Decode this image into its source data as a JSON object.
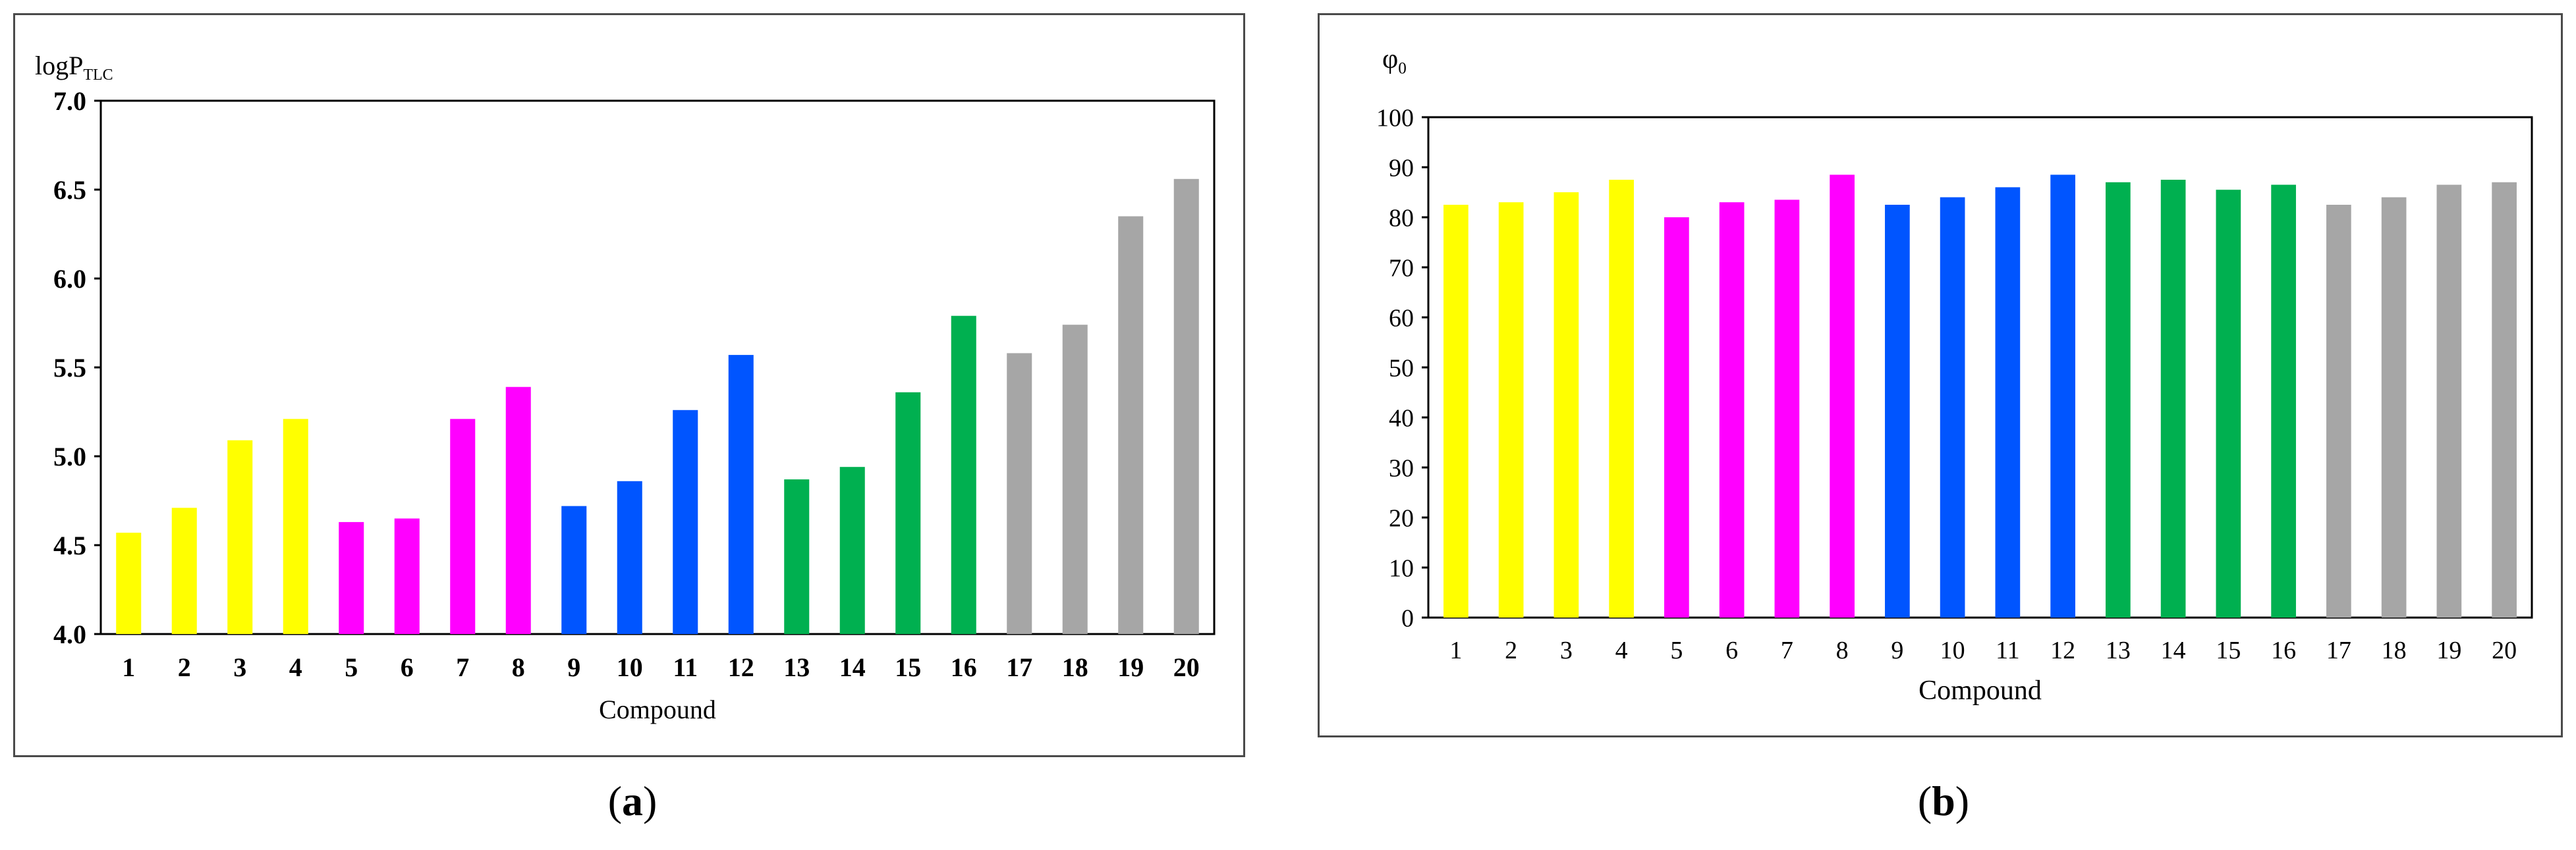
{
  "chart_data": [
    {
      "type": "bar",
      "ylabel_main": "logP",
      "ylabel_sub": "TLC",
      "xlabel": "Compound",
      "ylim": [
        4.0,
        7.0
      ],
      "yticks": [
        "4.0",
        "4.5",
        "5.0",
        "5.5",
        "6.0",
        "6.5",
        "7.0"
      ],
      "categories": [
        "1",
        "2",
        "3",
        "4",
        "5",
        "6",
        "7",
        "8",
        "9",
        "10",
        "11",
        "12",
        "13",
        "14",
        "15",
        "16",
        "17",
        "18",
        "19",
        "20"
      ],
      "values": [
        4.57,
        4.71,
        5.09,
        5.21,
        4.63,
        4.65,
        5.21,
        5.39,
        4.72,
        4.86,
        5.26,
        5.57,
        4.87,
        4.94,
        5.36,
        5.79,
        5.58,
        5.74,
        6.35,
        6.56
      ],
      "colors": [
        "#ffff00",
        "#ffff00",
        "#ffff00",
        "#ffff00",
        "#ff00ff",
        "#ff00ff",
        "#ff00ff",
        "#ff00ff",
        "#0055ff",
        "#0055ff",
        "#0055ff",
        "#0055ff",
        "#00b050",
        "#00b050",
        "#00b050",
        "#00b050",
        "#a6a6a6",
        "#a6a6a6",
        "#a6a6a6",
        "#a6a6a6"
      ],
      "caption": "a"
    },
    {
      "type": "bar",
      "ylabel_main": "φ",
      "ylabel_sub": "0",
      "xlabel": "Compound",
      "ylim": [
        0,
        100
      ],
      "yticks": [
        "0",
        "10",
        "20",
        "30",
        "40",
        "50",
        "60",
        "70",
        "80",
        "90",
        "100"
      ],
      "categories": [
        "1",
        "2",
        "3",
        "4",
        "5",
        "6",
        "7",
        "8",
        "9",
        "10",
        "11",
        "12",
        "13",
        "14",
        "15",
        "16",
        "17",
        "18",
        "19",
        "20"
      ],
      "values": [
        82.5,
        83,
        85,
        87.5,
        80,
        83,
        83.5,
        88.5,
        82.5,
        84,
        86,
        88.5,
        87,
        87.5,
        85.5,
        86.5,
        82.5,
        84,
        86.5,
        87
      ],
      "colors": [
        "#ffff00",
        "#ffff00",
        "#ffff00",
        "#ffff00",
        "#ff00ff",
        "#ff00ff",
        "#ff00ff",
        "#ff00ff",
        "#0055ff",
        "#0055ff",
        "#0055ff",
        "#0055ff",
        "#00b050",
        "#00b050",
        "#00b050",
        "#00b050",
        "#a6a6a6",
        "#a6a6a6",
        "#a6a6a6",
        "#a6a6a6"
      ],
      "caption": "b"
    }
  ]
}
